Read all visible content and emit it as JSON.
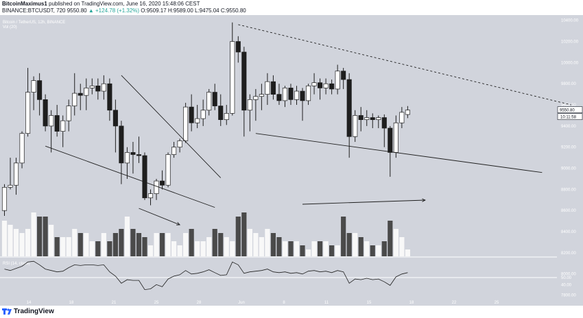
{
  "header": {
    "author": "BitcoinMaximus1",
    "published": "published on TradingView.com, June 16, 2020 15:48:06 CEST",
    "symbol_line": "BINANCE:BTCUSDT, 720",
    "last": "9550.80",
    "change": "▲ +124.78 (+1.32%)",
    "ohlc": "O:9509.17 H:9589.00 L:9475.04 C:9550.80"
  },
  "legend": {
    "title": "Bitcoin / TetherUS, 12h, BINANCE",
    "volume": "Vol (20)",
    "rsi": "RSI (14, close)"
  },
  "price_tag": {
    "value": "9550.80",
    "countdown": "10:11:58"
  },
  "footer": {
    "logo_text": "TradingView"
  },
  "colors": {
    "background": "#d1d4dc",
    "up": "#ffffff",
    "down": "#1e1e1e",
    "vol_up": "#f8f8f8",
    "vol_down": "#4a4a4a",
    "line": "#1e1e1e"
  },
  "chart_data": {
    "type": "candlestick",
    "title": "Bitcoin / TetherUS, 12h, BINANCE",
    "timeframe": "12h",
    "x_tick_labels": [
      "14",
      "18",
      "21",
      "25",
      "28",
      "Jun",
      "8",
      "11",
      "15",
      "18",
      "22",
      "25"
    ],
    "price_axis_ticks": [
      "10400.00",
      "10200.00",
      "10000.00",
      "9800.00",
      "9600.00",
      "9400.00",
      "9200.00",
      "9000.00",
      "8800.00",
      "8600.00",
      "8400.00",
      "8200.00",
      "8000.00",
      "7800.00"
    ],
    "price_range": [
      7700,
      10450
    ],
    "candles": [
      {
        "o": 8600,
        "h": 8850,
        "l": 8550,
        "c": 8820
      },
      {
        "o": 8820,
        "h": 9100,
        "l": 8800,
        "c": 8840
      },
      {
        "o": 8840,
        "h": 9100,
        "l": 8750,
        "c": 9050
      },
      {
        "o": 9050,
        "h": 9350,
        "l": 9000,
        "c": 9330
      },
      {
        "o": 9330,
        "h": 9950,
        "l": 9300,
        "c": 9720
      },
      {
        "o": 9720,
        "h": 9870,
        "l": 9550,
        "c": 9830
      },
      {
        "o": 9830,
        "h": 9900,
        "l": 9500,
        "c": 9650
      },
      {
        "o": 9650,
        "h": 9700,
        "l": 9350,
        "c": 9400
      },
      {
        "o": 9400,
        "h": 9550,
        "l": 9150,
        "c": 9500
      },
      {
        "o": 9500,
        "h": 9600,
        "l": 9300,
        "c": 9350
      },
      {
        "o": 9350,
        "h": 9500,
        "l": 9200,
        "c": 9450
      },
      {
        "o": 9450,
        "h": 9650,
        "l": 9350,
        "c": 9590
      },
      {
        "o": 9590,
        "h": 9900,
        "l": 9500,
        "c": 9710
      },
      {
        "o": 9710,
        "h": 9800,
        "l": 9550,
        "c": 9690
      },
      {
        "o": 9690,
        "h": 9850,
        "l": 9550,
        "c": 9760
      },
      {
        "o": 9760,
        "h": 9850,
        "l": 9700,
        "c": 9780
      },
      {
        "o": 9780,
        "h": 9850,
        "l": 9650,
        "c": 9730
      },
      {
        "o": 9730,
        "h": 9880,
        "l": 9650,
        "c": 9800
      },
      {
        "o": 9800,
        "h": 9850,
        "l": 9450,
        "c": 9550
      },
      {
        "o": 9550,
        "h": 9650,
        "l": 9150,
        "c": 9400
      },
      {
        "o": 9400,
        "h": 9450,
        "l": 8850,
        "c": 9050
      },
      {
        "o": 9050,
        "h": 9200,
        "l": 8900,
        "c": 9150
      },
      {
        "o": 9150,
        "h": 9250,
        "l": 8950,
        "c": 9130
      },
      {
        "o": 9130,
        "h": 9300,
        "l": 9050,
        "c": 9120
      },
      {
        "o": 9120,
        "h": 9150,
        "l": 8700,
        "c": 8720
      },
      {
        "o": 8720,
        "h": 8800,
        "l": 8650,
        "c": 8760
      },
      {
        "o": 8760,
        "h": 8900,
        "l": 8700,
        "c": 8880
      },
      {
        "o": 8880,
        "h": 8980,
        "l": 8800,
        "c": 8840
      },
      {
        "o": 8840,
        "h": 9150,
        "l": 8820,
        "c": 9130
      },
      {
        "o": 9130,
        "h": 9250,
        "l": 9100,
        "c": 9200
      },
      {
        "o": 9200,
        "h": 9280,
        "l": 9150,
        "c": 9260
      },
      {
        "o": 9260,
        "h": 9620,
        "l": 9240,
        "c": 9580
      },
      {
        "o": 9580,
        "h": 9700,
        "l": 9350,
        "c": 9430
      },
      {
        "o": 9430,
        "h": 9600,
        "l": 9380,
        "c": 9470
      },
      {
        "o": 9470,
        "h": 9650,
        "l": 9400,
        "c": 9550
      },
      {
        "o": 9550,
        "h": 9750,
        "l": 9500,
        "c": 9720
      },
      {
        "o": 9720,
        "h": 9800,
        "l": 9550,
        "c": 9590
      },
      {
        "o": 9590,
        "h": 9700,
        "l": 9400,
        "c": 9460
      },
      {
        "o": 9460,
        "h": 9600,
        "l": 9410,
        "c": 9520
      },
      {
        "o": 9520,
        "h": 10380,
        "l": 9500,
        "c": 10200
      },
      {
        "o": 10200,
        "h": 10250,
        "l": 10000,
        "c": 10100
      },
      {
        "o": 10100,
        "h": 10150,
        "l": 9300,
        "c": 9550
      },
      {
        "o": 9550,
        "h": 9700,
        "l": 9350,
        "c": 9650
      },
      {
        "o": 9650,
        "h": 9750,
        "l": 9450,
        "c": 9680
      },
      {
        "o": 9680,
        "h": 9800,
        "l": 9550,
        "c": 9700
      },
      {
        "o": 9700,
        "h": 9900,
        "l": 9600,
        "c": 9820
      },
      {
        "o": 9820,
        "h": 9880,
        "l": 9650,
        "c": 9700
      },
      {
        "o": 9700,
        "h": 9800,
        "l": 9600,
        "c": 9640
      },
      {
        "o": 9640,
        "h": 9780,
        "l": 9580,
        "c": 9760
      },
      {
        "o": 9760,
        "h": 9800,
        "l": 9600,
        "c": 9650
      },
      {
        "o": 9650,
        "h": 9780,
        "l": 9600,
        "c": 9730
      },
      {
        "o": 9730,
        "h": 9760,
        "l": 9450,
        "c": 9640
      },
      {
        "o": 9640,
        "h": 9800,
        "l": 9600,
        "c": 9780
      },
      {
        "o": 9780,
        "h": 9900,
        "l": 9700,
        "c": 9810
      },
      {
        "o": 9810,
        "h": 9850,
        "l": 9650,
        "c": 9760
      },
      {
        "o": 9760,
        "h": 9850,
        "l": 9700,
        "c": 9800
      },
      {
        "o": 9800,
        "h": 9840,
        "l": 9700,
        "c": 9750
      },
      {
        "o": 9750,
        "h": 9980,
        "l": 9700,
        "c": 9920
      },
      {
        "o": 9920,
        "h": 9950,
        "l": 9750,
        "c": 9840
      },
      {
        "o": 9840,
        "h": 9900,
        "l": 9100,
        "c": 9300
      },
      {
        "o": 9300,
        "h": 9550,
        "l": 9250,
        "c": 9500
      },
      {
        "o": 9500,
        "h": 9580,
        "l": 9350,
        "c": 9460
      },
      {
        "o": 9460,
        "h": 9550,
        "l": 9400,
        "c": 9480
      },
      {
        "o": 9480,
        "h": 9520,
        "l": 9380,
        "c": 9460
      },
      {
        "o": 9460,
        "h": 9500,
        "l": 9380,
        "c": 9480
      },
      {
        "o": 9480,
        "h": 9510,
        "l": 9200,
        "c": 9380
      },
      {
        "o": 9380,
        "h": 9400,
        "l": 8920,
        "c": 9150
      },
      {
        "o": 9150,
        "h": 9500,
        "l": 9100,
        "c": 9430
      },
      {
        "o": 9430,
        "h": 9580,
        "l": 9380,
        "c": 9530
      },
      {
        "o": 9509.17,
        "h": 9589,
        "l": 9475.04,
        "c": 9550.8
      }
    ],
    "volume": [
      9,
      8,
      7,
      6,
      7,
      11,
      10,
      10,
      8,
      5,
      5,
      5,
      7,
      6,
      6,
      4,
      4,
      6,
      4,
      6,
      7,
      10,
      7,
      6,
      5,
      3,
      6,
      6,
      6,
      4,
      3,
      6,
      7,
      4,
      4,
      5,
      7,
      6,
      5,
      4,
      10,
      11,
      7,
      6,
      5,
      7,
      6,
      5,
      4,
      4,
      4,
      3,
      2,
      4,
      4,
      4,
      3,
      3,
      10,
      6,
      6,
      5,
      4,
      3,
      3,
      4,
      9,
      7,
      5,
      2
    ],
    "rsi": [
      62,
      60,
      63,
      66,
      72,
      73,
      68,
      62,
      60,
      58,
      59,
      64,
      68,
      67,
      68,
      68,
      67,
      68,
      58,
      52,
      42,
      47,
      46,
      46,
      33,
      34,
      40,
      37,
      48,
      52,
      54,
      60,
      55,
      56,
      58,
      61,
      57,
      53,
      54,
      72,
      68,
      56,
      58,
      59,
      60,
      62,
      58,
      57,
      58,
      56,
      57,
      55,
      59,
      60,
      58,
      59,
      57,
      60,
      58,
      42,
      48,
      47,
      49,
      47,
      48,
      44,
      39,
      51,
      55,
      57
    ],
    "rsi_levels": [
      "50.00",
      "40.00"
    ],
    "trendlines": [
      {
        "name": "falling-wedge-upper",
        "points": [
          [
            20,
            9880
          ],
          [
            37,
            8910
          ]
        ]
      },
      {
        "name": "falling-wedge-lower",
        "points": [
          [
            7,
            9210
          ],
          [
            36,
            8630
          ]
        ]
      },
      {
        "name": "descending-resistance-dashed",
        "points": [
          [
            40,
            10360
          ],
          [
            97,
            9600
          ]
        ]
      },
      {
        "name": "descending-support",
        "points": [
          [
            43,
            9330
          ],
          [
            92,
            8960
          ]
        ]
      }
    ],
    "volume_arrows": [
      {
        "from": [
          23,
          12
        ],
        "to": [
          30,
          8
        ]
      },
      {
        "from": [
          51,
          13
        ],
        "to": [
          72,
          14
        ]
      }
    ]
  }
}
